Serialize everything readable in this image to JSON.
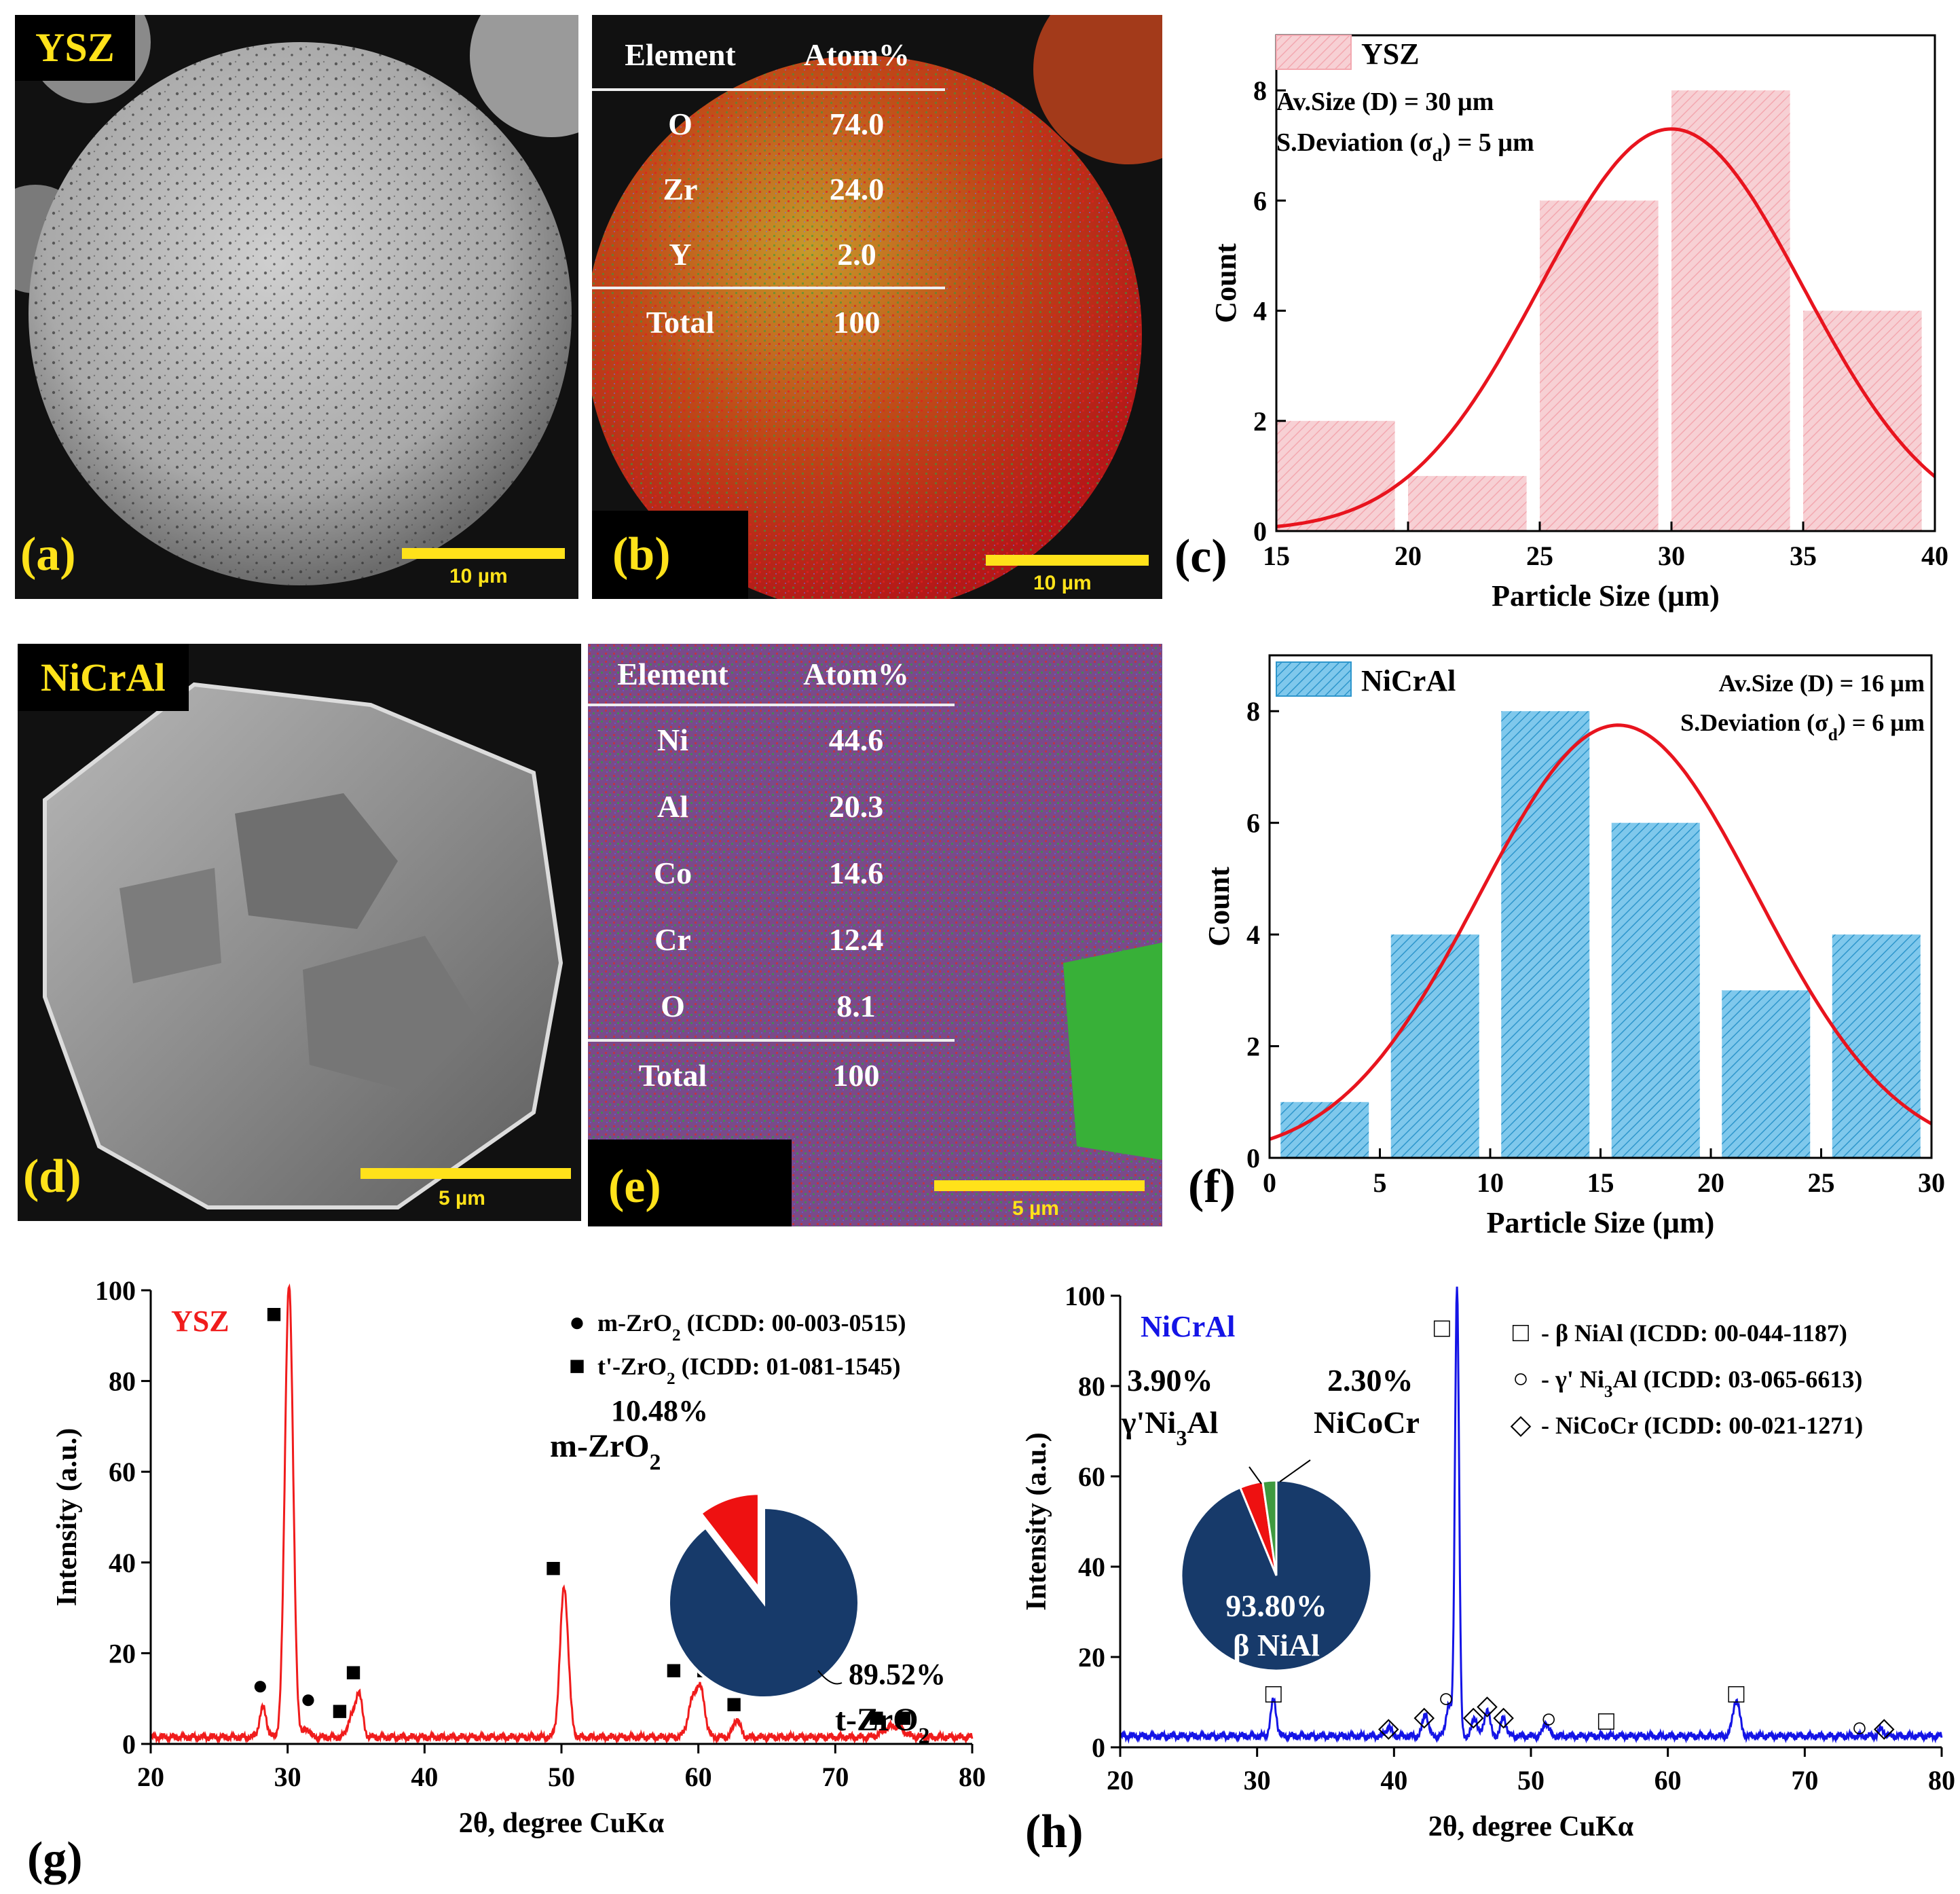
{
  "panels": {
    "a": {
      "label": "(a)",
      "tag": "YSZ",
      "scale": "10 µm"
    },
    "b": {
      "label": "(b)",
      "scale": "10 µm",
      "table": {
        "headers": [
          "Element",
          "Atom%"
        ],
        "rows": [
          [
            "O",
            "74.0"
          ],
          [
            "Zr",
            "24.0"
          ],
          [
            "Y",
            "2.0"
          ]
        ],
        "total": [
          "Total",
          "100"
        ]
      }
    },
    "c": {
      "label": "(c)"
    },
    "d": {
      "label": "(d)",
      "tag": "NiCrAl",
      "scale": "5 µm"
    },
    "e": {
      "label": "(e)",
      "scale": "5 µm",
      "table": {
        "headers": [
          "Element",
          "Atom%"
        ],
        "rows": [
          [
            "Ni",
            "44.6"
          ],
          [
            "Al",
            "20.3"
          ],
          [
            "Co",
            "14.6"
          ],
          [
            "Cr",
            "12.4"
          ],
          [
            "O",
            "8.1"
          ]
        ],
        "total": [
          "Total",
          "100"
        ]
      }
    },
    "f": {
      "label": "(f)"
    },
    "g": {
      "label": "(g)"
    },
    "h": {
      "label": "(h)"
    }
  },
  "colors": {
    "ysz_bar": "#f7d0d4",
    "nicral_bar": "#7fc8ec",
    "fit": "#e8141e",
    "ysz_line": "#f01c1c",
    "nicral_line": "#1414e6",
    "pie_main": "#173a6a",
    "pie_red": "#ee1111",
    "pie_green": "#3f9a3f"
  },
  "chart_data": [
    {
      "id": "c",
      "type": "bar",
      "legend": "YSZ",
      "annotations": [
        "Av.Size (D) = 30 µm",
        "S.Deviation (σ",
        "d",
        ") = 5 µm"
      ],
      "xlabel": "Particle Size (µm)",
      "ylabel": "Count",
      "xlim": [
        15,
        40
      ],
      "ylim": [
        0,
        9
      ],
      "xticks": [
        "15",
        "20",
        "25",
        "30",
        "35",
        "40"
      ],
      "yticks": [
        "0",
        "2",
        "4",
        "6",
        "8"
      ],
      "bins": [
        [
          15,
          19.5,
          2
        ],
        [
          20,
          24.5,
          1
        ],
        [
          25,
          29.5,
          6
        ],
        [
          30,
          34.5,
          8
        ],
        [
          35,
          39.5,
          4
        ]
      ],
      "fit": {
        "mean": 30,
        "sd": 5,
        "peak": 7.3
      }
    },
    {
      "id": "f",
      "type": "bar",
      "legend": "NiCrAl",
      "annotations": [
        "Av.Size (D) = 16 µm",
        "S.Deviation (σ",
        "d",
        ") = 6 µm"
      ],
      "xlabel": "Particle Size (µm)",
      "ylabel": "Count",
      "xlim": [
        0,
        30
      ],
      "ylim": [
        0,
        9
      ],
      "xticks": [
        "0",
        "5",
        "10",
        "15",
        "20",
        "25",
        "30"
      ],
      "yticks": [
        "0",
        "2",
        "4",
        "6",
        "8"
      ],
      "bins": [
        [
          0.5,
          4.5,
          1
        ],
        [
          5.5,
          9.5,
          4
        ],
        [
          10.5,
          14.5,
          8
        ],
        [
          15.5,
          19.5,
          6
        ],
        [
          20.5,
          24.5,
          3
        ],
        [
          25.5,
          29.5,
          4
        ]
      ],
      "fit": {
        "mean": 15.8,
        "sd": 6.3,
        "peak": 7.75
      }
    },
    {
      "id": "g",
      "type": "line",
      "title": "YSZ",
      "xlabel": "2θ, degree CuKα",
      "ylabel": "Intensity (a.u.)",
      "xlim": [
        20,
        80
      ],
      "ylim": [
        0,
        100
      ],
      "xticks": [
        "20",
        "30",
        "40",
        "50",
        "60",
        "70",
        "80"
      ],
      "yticks": [
        "0",
        "20",
        "40",
        "60",
        "80",
        "100"
      ],
      "legend": [
        [
          "●",
          "m-ZrO",
          "2",
          " (ICDD: 00-003-0515)"
        ],
        [
          "■",
          "t'-ZrO",
          "2",
          " (ICDD: 01-081-1545)"
        ]
      ],
      "peaks": [
        [
          28.2,
          6.5,
          0.25
        ],
        [
          30.1,
          100,
          0.3
        ],
        [
          31.4,
          2,
          0.2
        ],
        [
          34.6,
          4,
          0.25
        ],
        [
          35.2,
          10,
          0.25
        ],
        [
          50.2,
          33,
          0.3
        ],
        [
          59.6,
          8,
          0.35
        ],
        [
          60.2,
          9,
          0.3
        ],
        [
          62.8,
          4,
          0.25
        ],
        [
          73.8,
          1.5,
          0.5
        ],
        [
          74.6,
          1.8,
          0.5
        ]
      ],
      "baseline": 1.5,
      "markers": [
        [
          "●",
          28.0,
          13
        ],
        [
          "■",
          29.0,
          95
        ],
        [
          "●",
          31.5,
          10
        ],
        [
          "■",
          33.8,
          7.5
        ],
        [
          "■",
          34.8,
          16
        ],
        [
          "■",
          49.4,
          39
        ],
        [
          "■",
          58.2,
          16.5
        ],
        [
          "■",
          60.4,
          16.5
        ],
        [
          "■",
          62.6,
          9
        ],
        [
          "■",
          73.0,
          6
        ],
        [
          "■",
          75.0,
          6
        ]
      ],
      "pie": {
        "slices": [
          {
            "label": "m-ZrO",
            "sub": "2",
            "value": 10.48,
            "pct": "10.48%"
          },
          {
            "label": "t-ZrO",
            "sub": "2",
            "value": 89.52,
            "pct": "89.52%"
          }
        ]
      }
    },
    {
      "id": "h",
      "type": "line",
      "title": "NiCrAl",
      "xlabel": "2θ, degree CuKα",
      "ylabel": "Intensity (a.u.)",
      "xlim": [
        20,
        80
      ],
      "ylim": [
        0,
        100
      ],
      "xticks": [
        "20",
        "30",
        "40",
        "50",
        "60",
        "70",
        "80"
      ],
      "yticks": [
        "0",
        "20",
        "40",
        "60",
        "80",
        "100"
      ],
      "legend": [
        [
          "□",
          "- β NiAl   (ICDD: 00-044-1187)"
        ],
        [
          "○",
          "-  γ' Ni",
          "3",
          "Al (ICDD: 03-065-6613)"
        ],
        [
          "◇",
          "- NiCoCr (ICDD: 00-021-1271)"
        ]
      ],
      "peaks": [
        [
          31.2,
          8,
          0.2
        ],
        [
          39.6,
          2,
          0.2
        ],
        [
          42.3,
          5,
          0.2
        ],
        [
          44.0,
          7,
          0.2
        ],
        [
          44.6,
          100,
          0.15
        ],
        [
          45.9,
          4,
          0.2
        ],
        [
          46.8,
          6,
          0.2
        ],
        [
          48.0,
          4,
          0.2
        ],
        [
          51.1,
          3,
          0.2
        ],
        [
          65.0,
          8,
          0.25
        ],
        [
          75.6,
          1.5,
          0.2
        ]
      ],
      "baseline": 2.5,
      "markers": [
        [
          "□",
          31.2,
          12
        ],
        [
          "◇",
          39.6,
          4.5
        ],
        [
          "◇",
          42.2,
          7
        ],
        [
          "○",
          43.8,
          11
        ],
        [
          "◇",
          45.8,
          7
        ],
        [
          "◇",
          46.8,
          9.5
        ],
        [
          "◇",
          48.0,
          7
        ],
        [
          "○",
          51.3,
          6.5
        ],
        [
          "□",
          55.5,
          6
        ],
        [
          "□",
          65.0,
          12
        ],
        [
          "○",
          74.0,
          4.5
        ],
        [
          "◇",
          75.8,
          4.5
        ],
        [
          "□",
          43.5,
          93
        ]
      ],
      "pie": {
        "slices": [
          {
            "label": "γ'Ni",
            "sub": "3",
            "tail": "Al",
            "value": 3.9,
            "pct": "3.90%"
          },
          {
            "label": "NiCoCr",
            "value": 2.3,
            "pct": "2.30%"
          },
          {
            "label": "β NiAl",
            "value": 93.8,
            "pct": "93.80%"
          }
        ]
      }
    }
  ]
}
